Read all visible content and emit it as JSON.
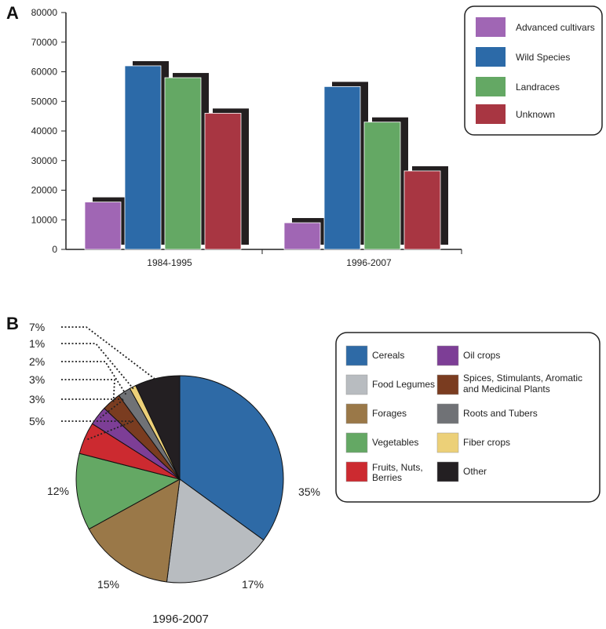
{
  "panels": {
    "a": "A",
    "b": "B"
  },
  "chart_data": [
    {
      "type": "bar",
      "categories": [
        "1984-1995",
        "1996-2007"
      ],
      "series": [
        {
          "name": "Advanced cultivars",
          "values": [
            16000,
            9000
          ],
          "color": "#a066b4"
        },
        {
          "name": "Wild Species",
          "values": [
            62000,
            55000
          ],
          "color": "#2c6aa8"
        },
        {
          "name": "Landraces",
          "values": [
            58000,
            43000
          ],
          "color": "#64a864"
        },
        {
          "name": "Unknown",
          "values": [
            46000,
            26500
          ],
          "color": "#a83642"
        }
      ],
      "yticks": [
        "0",
        "10000",
        "20000",
        "30000",
        "40000",
        "50000",
        "60000",
        "70000",
        "80000"
      ],
      "ylim": [
        0,
        80000
      ],
      "title": "",
      "xlabel": "",
      "ylabel": "",
      "legend_position": "top-right"
    },
    {
      "type": "pie",
      "title": "1996-2007",
      "slices": [
        {
          "name": "Cereals",
          "value": 35,
          "label": "35%",
          "color": "#2e6aa6"
        },
        {
          "name": "Food Legumes",
          "value": 17,
          "label": "17%",
          "color": "#b8bcc0"
        },
        {
          "name": "Forages",
          "value": 15,
          "label": "15%",
          "color": "#9a7848"
        },
        {
          "name": "Vegetables",
          "value": 12,
          "label": "12%",
          "color": "#64a864"
        },
        {
          "name": "Fruits, Nuts, Berries",
          "value": 5,
          "label": "5%",
          "color": "#cc2a30"
        },
        {
          "name": "Oil crops",
          "value": 3,
          "label": "3%",
          "color": "#7d3e96"
        },
        {
          "name": "Spices, Stimulants, Aromatic and Medicinal Plants",
          "value": 3,
          "label": "3%",
          "color": "#7a3c20"
        },
        {
          "name": "Roots and Tubers",
          "value": 2,
          "label": "2%",
          "color": "#707276"
        },
        {
          "name": "Fiber crops",
          "value": 1,
          "label": "1%",
          "color": "#ecd078"
        },
        {
          "name": "Other",
          "value": 7,
          "label": "7%",
          "color": "#231f22"
        }
      ],
      "legend_columns": [
        [
          "Cereals",
          "Food Legumes",
          "Forages",
          "Vegetables",
          "Fruits, Nuts, Berries"
        ],
        [
          "Oil crops",
          "Spices, Stimulants, Aromatic and Medicinal Plants",
          "Roots and Tubers",
          "Fiber crops",
          "Other"
        ]
      ],
      "legend_position": "right"
    }
  ]
}
